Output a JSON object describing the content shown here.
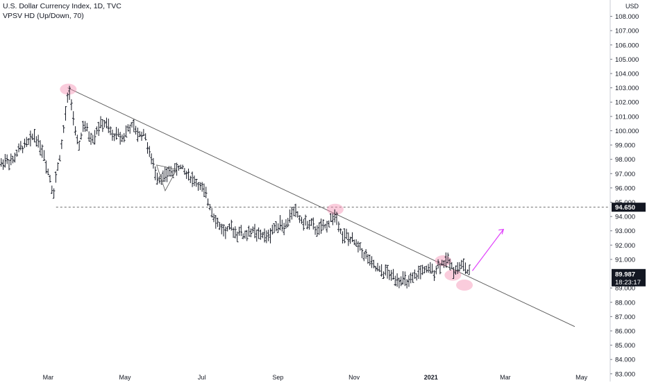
{
  "header": {
    "title": "U.S. Dollar Currency Index, 1D, TVC",
    "indicator": "VPSV HD (Up/Down, 70)"
  },
  "chart_data": {
    "type": "ohlc",
    "currency": "USD",
    "y_ticks": [
      "83.000",
      "84.000",
      "85.000",
      "86.000",
      "87.000",
      "88.000",
      "89.000",
      "91.000",
      "92.000",
      "93.000",
      "94.000",
      "95.000",
      "96.000",
      "97.000",
      "98.000",
      "99.000",
      "100.000",
      "101.000",
      "102.000",
      "103.000",
      "104.000",
      "105.000",
      "106.000",
      "107.000",
      "108.000"
    ],
    "x_ticks": [
      "Mar",
      "May",
      "Jul",
      "Sep",
      "Nov",
      "2021",
      "Mar",
      "May"
    ],
    "ylim": [
      82.7,
      108.9
    ],
    "grid": false,
    "price_labels": [
      {
        "text": "94.650",
        "value": 94.65
      },
      {
        "text": "89.987",
        "value": 89.987
      },
      {
        "text": "18:23:17",
        "value": 89.53
      }
    ],
    "support_level": 94.65,
    "trendline": [
      {
        "x": 0.111,
        "y": 103.0
      },
      {
        "x": 0.943,
        "y": 86.3
      }
    ],
    "projection_arrow": {
      "from": [
        0.775,
        90.2
      ],
      "to": [
        0.826,
        93.1
      ],
      "color": "#e040fb"
    },
    "highlights": [
      {
        "x": 0.112,
        "y": 102.9
      },
      {
        "x": 0.55,
        "y": 94.5
      },
      {
        "x": 0.727,
        "y": 90.9
      },
      {
        "x": 0.743,
        "y": 89.9
      },
      {
        "x": 0.762,
        "y": 89.2
      }
    ],
    "wedge": {
      "points": [
        [
          0.257,
          97.6
        ],
        [
          0.29,
          97.3
        ],
        [
          0.271,
          95.8
        ]
      ]
    },
    "series_anchors": [
      [
        0.0,
        97.6
      ],
      [
        0.01,
        98.0
      ],
      [
        0.02,
        97.8
      ],
      [
        0.03,
        98.6
      ],
      [
        0.04,
        99.0
      ],
      [
        0.05,
        99.3
      ],
      [
        0.055,
        99.8
      ],
      [
        0.063,
        99.2
      ],
      [
        0.07,
        98.6
      ],
      [
        0.076,
        97.6
      ],
      [
        0.082,
        96.7
      ],
      [
        0.088,
        95.6
      ],
      [
        0.092,
        96.8
      ],
      [
        0.097,
        98.0
      ],
      [
        0.102,
        99.2
      ],
      [
        0.106,
        100.6
      ],
      [
        0.11,
        102.0
      ],
      [
        0.113,
        102.8
      ],
      [
        0.117,
        102.1
      ],
      [
        0.121,
        100.7
      ],
      [
        0.125,
        99.2
      ],
      [
        0.13,
        99.0
      ],
      [
        0.136,
        100.3
      ],
      [
        0.142,
        100.1
      ],
      [
        0.148,
        99.5
      ],
      [
        0.154,
        99.5
      ],
      [
        0.16,
        100.2
      ],
      [
        0.166,
        100.4
      ],
      [
        0.172,
        100.5
      ],
      [
        0.178,
        100.2
      ],
      [
        0.184,
        99.6
      ],
      [
        0.19,
        99.8
      ],
      [
        0.196,
        99.7
      ],
      [
        0.202,
        99.5
      ],
      [
        0.208,
        100.0
      ],
      [
        0.214,
        100.3
      ],
      [
        0.22,
        100.2
      ],
      [
        0.226,
        99.7
      ],
      [
        0.232,
        99.8
      ],
      [
        0.238,
        99.8
      ],
      [
        0.244,
        98.5
      ],
      [
        0.25,
        97.8
      ],
      [
        0.256,
        96.9
      ],
      [
        0.262,
        96.7
      ],
      [
        0.268,
        96.8
      ],
      [
        0.274,
        96.9
      ],
      [
        0.28,
        97.2
      ],
      [
        0.286,
        97.1
      ],
      [
        0.292,
        97.5
      ],
      [
        0.298,
        97.4
      ],
      [
        0.304,
        97.1
      ],
      [
        0.31,
        96.9
      ],
      [
        0.316,
        96.6
      ],
      [
        0.322,
        96.4
      ],
      [
        0.328,
        96.1
      ],
      [
        0.334,
        95.8
      ],
      [
        0.34,
        95.2
      ],
      [
        0.346,
        94.6
      ],
      [
        0.352,
        94.0
      ],
      [
        0.358,
        93.4
      ],
      [
        0.364,
        93.2
      ],
      [
        0.37,
        92.9
      ],
      [
        0.376,
        93.1
      ],
      [
        0.382,
        93.2
      ],
      [
        0.388,
        92.8
      ],
      [
        0.394,
        93.0
      ],
      [
        0.4,
        92.6
      ],
      [
        0.406,
        92.8
      ],
      [
        0.412,
        93.0
      ],
      [
        0.418,
        92.9
      ],
      [
        0.424,
        92.6
      ],
      [
        0.43,
        92.8
      ],
      [
        0.436,
        92.5
      ],
      [
        0.442,
        92.7
      ],
      [
        0.448,
        93.1
      ],
      [
        0.454,
        93.4
      ],
      [
        0.46,
        93.6
      ],
      [
        0.466,
        93.2
      ],
      [
        0.472,
        93.5
      ],
      [
        0.478,
        94.3
      ],
      [
        0.484,
        94.4
      ],
      [
        0.49,
        94.0
      ],
      [
        0.496,
        93.6
      ],
      [
        0.502,
        93.5
      ],
      [
        0.508,
        93.5
      ],
      [
        0.514,
        93.3
      ],
      [
        0.52,
        93.0
      ],
      [
        0.526,
        93.2
      ],
      [
        0.532,
        93.2
      ],
      [
        0.538,
        93.5
      ],
      [
        0.544,
        93.9
      ],
      [
        0.55,
        94.0
      ],
      [
        0.556,
        93.6
      ],
      [
        0.562,
        92.6
      ],
      [
        0.568,
        92.6
      ],
      [
        0.574,
        92.4
      ],
      [
        0.58,
        92.2
      ],
      [
        0.586,
        92.0
      ],
      [
        0.592,
        91.8
      ],
      [
        0.598,
        91.3
      ],
      [
        0.604,
        91.1
      ],
      [
        0.61,
        90.6
      ],
      [
        0.616,
        90.4
      ],
      [
        0.622,
        90.2
      ],
      [
        0.628,
        90.0
      ],
      [
        0.634,
        90.2
      ],
      [
        0.64,
        89.8
      ],
      [
        0.646,
        89.9
      ],
      [
        0.652,
        89.6
      ],
      [
        0.658,
        89.6
      ],
      [
        0.664,
        89.5
      ],
      [
        0.67,
        89.3
      ],
      [
        0.676,
        89.5
      ],
      [
        0.682,
        89.8
      ],
      [
        0.688,
        90.1
      ],
      [
        0.694,
        90.3
      ],
      [
        0.7,
        90.1
      ],
      [
        0.706,
        90.3
      ],
      [
        0.712,
        90.2
      ],
      [
        0.718,
        90.5
      ],
      [
        0.724,
        90.7
      ],
      [
        0.73,
        90.8
      ],
      [
        0.736,
        91.0
      ],
      [
        0.742,
        90.4
      ],
      [
        0.748,
        90.3
      ],
      [
        0.754,
        90.5
      ],
      [
        0.76,
        90.6
      ],
      [
        0.766,
        90.2
      ],
      [
        0.77,
        90.0
      ]
    ]
  }
}
